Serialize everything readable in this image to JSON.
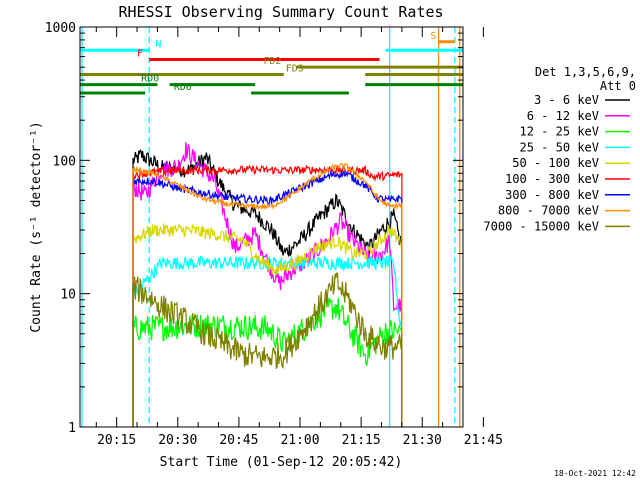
{
  "chart_data": {
    "type": "line",
    "title": "RHESSI Observing Summary Count Rates",
    "xlabel": "Start Time (01-Sep-12 20:05:42)",
    "ylabel": "Count Rate (s⁻¹ detector⁻¹)",
    "y_scale": "log",
    "ylim": [
      1,
      1000
    ],
    "y_ticks": [
      1,
      10,
      100,
      1000
    ],
    "y_tick_labels": [
      "1",
      "10",
      "100",
      "1000"
    ],
    "x_range_min": [
      0,
      94
    ],
    "x_ticks_min": [
      9,
      24,
      39,
      54,
      69,
      84,
      99
    ],
    "x_tick_labels": [
      "20:15",
      "20:30",
      "20:45",
      "21:00",
      "21:15",
      "21:30",
      "21:45"
    ],
    "footer": "18-Oct-2021 12:42",
    "legend": {
      "placement": "right",
      "header": [
        "Det 1,3,5,6,9,",
        "Att 0"
      ],
      "entries": [
        {
          "label": "3 - 6 keV",
          "color": "#000000"
        },
        {
          "label": "6 - 12 keV",
          "color": "#ff00ff"
        },
        {
          "label": "12 - 25 keV",
          "color": "#00ff00"
        },
        {
          "label": "25 - 50 keV",
          "color": "#00ffff"
        },
        {
          "label": "50 - 100 keV",
          "color": "#d7d700"
        },
        {
          "label": "100 - 300 keV",
          "color": "#ff0000"
        },
        {
          "label": "300 - 800 keV",
          "color": "#0000ff"
        },
        {
          "label": "800 - 7000 keV",
          "color": "#ff8c00"
        },
        {
          "label": "7000 - 15000 keV",
          "color": "#808000"
        }
      ]
    },
    "flag_bars": [
      {
        "label": "N",
        "color": "#00ffff",
        "y": 670,
        "segments": [
          [
            0,
            17
          ],
          [
            75,
            94
          ]
        ],
        "label_at": 18.5
      },
      {
        "label": "F",
        "color": "#ff0000",
        "y": 570,
        "segments": [
          [
            17,
            73.5
          ]
        ],
        "label_at": 14
      },
      {
        "label": "S",
        "color": "#ff8c00",
        "y": 775,
        "segments": [
          [
            88,
            92
          ]
        ],
        "label_at": 86
      },
      {
        "label": "FD2",
        "color": "#808000",
        "y": 500,
        "segments": [
          [
            53,
            94
          ]
        ],
        "label_at": 45
      },
      {
        "label": "FD3",
        "color": "#808000",
        "y": 440,
        "segments": [
          [
            0,
            50
          ],
          [
            70,
            94
          ]
        ],
        "label_at": 50.5
      },
      {
        "label": "RD0",
        "color": "#008000",
        "y": 370,
        "segments": [
          [
            0,
            19
          ],
          [
            22,
            43
          ],
          [
            70,
            94
          ]
        ],
        "label_at": 15
      },
      {
        "label": "RD6",
        "color": "#008000",
        "y": 320,
        "segments": [
          [
            0,
            16
          ],
          [
            42,
            66
          ]
        ],
        "label_at": 23
      }
    ],
    "vertical_markers": [
      {
        "x": 17,
        "color": "#00ffff",
        "style": "dashed"
      },
      {
        "x": 0.5,
        "color": "#00ffff",
        "style": "solid"
      },
      {
        "x": 76,
        "color": "#00ffff",
        "style": "solid"
      },
      {
        "x": 92,
        "color": "#00ffff",
        "style": "dashed"
      },
      {
        "x": 88,
        "color": "#ff8c00",
        "style": "solid"
      },
      {
        "x": 93.2,
        "color": "#ff8c00",
        "style": "solid"
      }
    ],
    "data_window_min": [
      13,
      79
    ],
    "series": [
      {
        "name": "3 - 6 keV",
        "color": "#000000",
        "noise": 0.06,
        "points": [
          [
            13.5,
            100
          ],
          [
            15,
            110
          ],
          [
            20,
            88
          ],
          [
            27,
            85
          ],
          [
            31,
            105
          ],
          [
            34,
            70
          ],
          [
            38,
            46
          ],
          [
            43,
            40
          ],
          [
            47,
            30
          ],
          [
            50,
            20
          ],
          [
            54,
            25
          ],
          [
            59,
            38
          ],
          [
            63,
            50
          ],
          [
            67,
            30
          ],
          [
            71,
            22
          ],
          [
            74,
            30
          ],
          [
            76,
            35
          ],
          [
            77,
            38
          ],
          [
            78.5,
            25
          ]
        ]
      },
      {
        "name": "6 - 12 keV",
        "color": "#ff00ff",
        "noise": 0.07,
        "points": [
          [
            13.5,
            62
          ],
          [
            16,
            55
          ],
          [
            20,
            85
          ],
          [
            24,
            90
          ],
          [
            26,
            120
          ],
          [
            29,
            95
          ],
          [
            33,
            70
          ],
          [
            38,
            22
          ],
          [
            43,
            28
          ],
          [
            47,
            15
          ],
          [
            49,
            12
          ],
          [
            52,
            15
          ],
          [
            56,
            18
          ],
          [
            61,
            26
          ],
          [
            64,
            35
          ],
          [
            67,
            25
          ],
          [
            71,
            18
          ],
          [
            74,
            20
          ],
          [
            76,
            25
          ],
          [
            77,
            8
          ],
          [
            78.5,
            8
          ]
        ]
      },
      {
        "name": "12 - 25 keV",
        "color": "#00ff00",
        "noise": 0.1,
        "points": [
          [
            13.5,
            5.5
          ],
          [
            20,
            5.6
          ],
          [
            30,
            5.8
          ],
          [
            40,
            5.7
          ],
          [
            46,
            5.5
          ],
          [
            50,
            4.2
          ],
          [
            55,
            5.5
          ],
          [
            60,
            7.5
          ],
          [
            63,
            8
          ],
          [
            66,
            5.5
          ],
          [
            70,
            3.5
          ],
          [
            75,
            5.2
          ],
          [
            78.5,
            5.2
          ]
        ]
      },
      {
        "name": "25 - 50 keV",
        "color": "#00ffff",
        "noise": 0.05,
        "points": [
          [
            13.5,
            10
          ],
          [
            20,
            17
          ],
          [
            30,
            17
          ],
          [
            40,
            17
          ],
          [
            46,
            17
          ],
          [
            50,
            17
          ],
          [
            55,
            17
          ],
          [
            60,
            17
          ],
          [
            70,
            17
          ],
          [
            76,
            17
          ],
          [
            77,
            17
          ],
          [
            78.5,
            6
          ]
        ]
      },
      {
        "name": "50 - 100 keV",
        "color": "#d7d700",
        "noise": 0.05,
        "points": [
          [
            13.5,
            26
          ],
          [
            18,
            30
          ],
          [
            26,
            30
          ],
          [
            33,
            28
          ],
          [
            40,
            25
          ],
          [
            44,
            18
          ],
          [
            48,
            15
          ],
          [
            53,
            17
          ],
          [
            58,
            22
          ],
          [
            63,
            25
          ],
          [
            67,
            20
          ],
          [
            71,
            20
          ],
          [
            76,
            30
          ],
          [
            78.5,
            25
          ]
        ]
      },
      {
        "name": "100 - 300 keV",
        "color": "#ff0000",
        "noise": 0.03,
        "points": [
          [
            13.5,
            78
          ],
          [
            16,
            80
          ],
          [
            22,
            84
          ],
          [
            32,
            84
          ],
          [
            40,
            85
          ],
          [
            45,
            85
          ],
          [
            50,
            84
          ],
          [
            58,
            85
          ],
          [
            66,
            84
          ],
          [
            70,
            84
          ],
          [
            72,
            75
          ],
          [
            78.5,
            78
          ]
        ]
      },
      {
        "name": "300 - 800 keV",
        "color": "#0000ff",
        "noise": 0.03,
        "points": [
          [
            13.5,
            70
          ],
          [
            18,
            70
          ],
          [
            24,
            62
          ],
          [
            30,
            57
          ],
          [
            36,
            53
          ],
          [
            42,
            51
          ],
          [
            47,
            50
          ],
          [
            52,
            58
          ],
          [
            57,
            68
          ],
          [
            62,
            78
          ],
          [
            65,
            80
          ],
          [
            70,
            65
          ],
          [
            73,
            52
          ],
          [
            76,
            50
          ],
          [
            78.5,
            52
          ]
        ]
      },
      {
        "name": "800 - 7000 keV",
        "color": "#ff8c00",
        "noise": 0.02,
        "points": [
          [
            13.5,
            85
          ],
          [
            18,
            80
          ],
          [
            24,
            65
          ],
          [
            30,
            52
          ],
          [
            36,
            47
          ],
          [
            42,
            45
          ],
          [
            47,
            45
          ],
          [
            52,
            55
          ],
          [
            57,
            72
          ],
          [
            62,
            88
          ],
          [
            65,
            92
          ],
          [
            70,
            70
          ],
          [
            73,
            52
          ],
          [
            76,
            45
          ],
          [
            78.5,
            46
          ]
        ]
      },
      {
        "name": "7000 - 15000 keV",
        "color": "#808000",
        "noise": 0.1,
        "points": [
          [
            13.5,
            11
          ],
          [
            16,
            10
          ],
          [
            20,
            8
          ],
          [
            25,
            6.5
          ],
          [
            30,
            5.2
          ],
          [
            35,
            4.2
          ],
          [
            40,
            3.5
          ],
          [
            45,
            3.3
          ],
          [
            50,
            3.5
          ],
          [
            55,
            5.5
          ],
          [
            60,
            9
          ],
          [
            63,
            12
          ],
          [
            66,
            9
          ],
          [
            70,
            5
          ],
          [
            74,
            4
          ],
          [
            78.5,
            4
          ]
        ]
      }
    ]
  }
}
